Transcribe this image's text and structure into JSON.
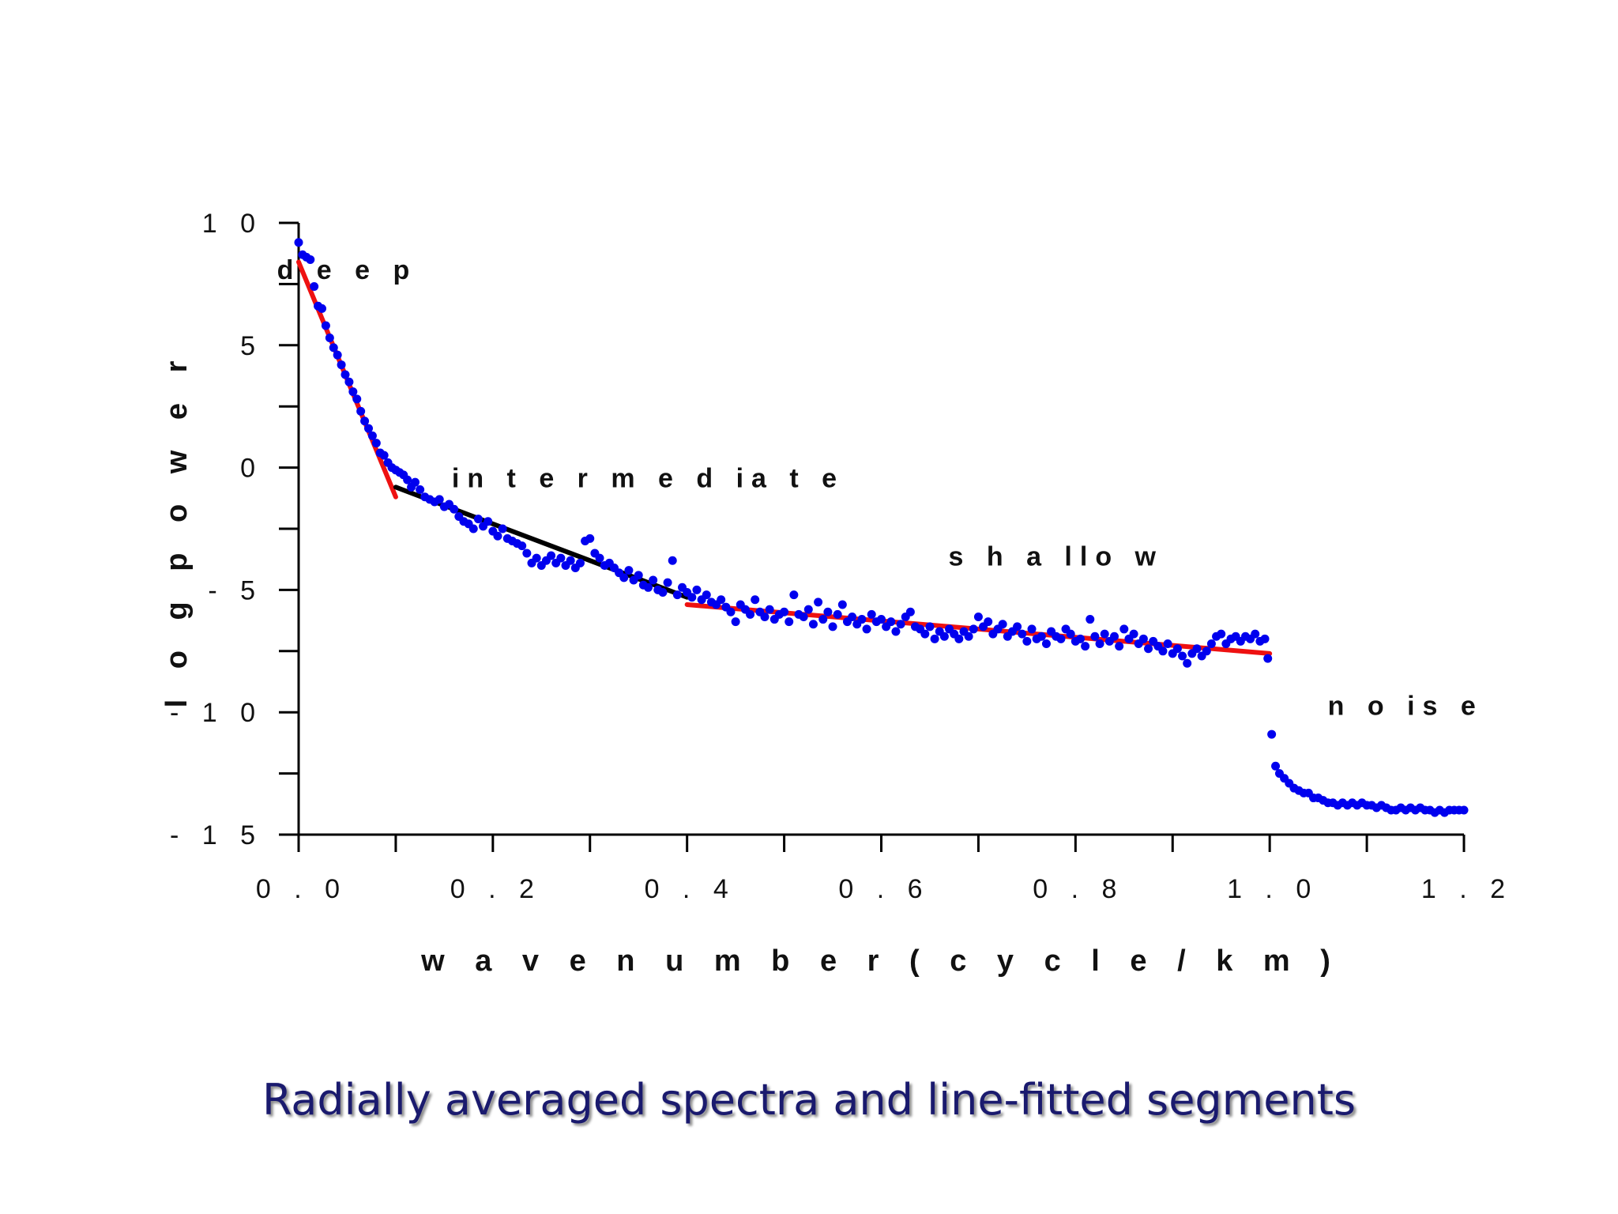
{
  "caption": "Radially averaged spectra and line-fitted segments",
  "chart_data": {
    "type": "scatter",
    "title": "",
    "xlabel": "w a v e n u m b e r ( c y c l e / k m )",
    "ylabel": "l o g   p o w e r",
    "xlim": [
      0,
      1.2
    ],
    "ylim": [
      -15,
      10
    ],
    "x_ticks": [
      0,
      0.1,
      0.2,
      0.3,
      0.4,
      0.5,
      0.6,
      0.7,
      0.8,
      0.9,
      1.0,
      1.1,
      1.2
    ],
    "x_tick_labels": [
      "0 . 0",
      "",
      "0 . 2",
      "",
      "0 . 4",
      "",
      "0 . 6",
      "",
      "0 . 8",
      "",
      "1 . 0",
      "",
      "1 . 2"
    ],
    "y_ticks": [
      10,
      7.5,
      5,
      2.5,
      0,
      -2.5,
      -5,
      -7.5,
      -10,
      -12.5,
      -15
    ],
    "y_tick_labels": [
      "1 0",
      "",
      "5",
      "",
      "0",
      "",
      "- 5",
      "",
      "- 1 0",
      "",
      "- 1 5"
    ],
    "grid": false,
    "colors": {
      "points": "#0000ee",
      "fit_deep": "#ee1111",
      "fit_intermediate": "#000000",
      "fit_shallow": "#ee1111",
      "caption": "#1a1a6e"
    },
    "points": [
      [
        0.0,
        9.2
      ],
      [
        0.004,
        8.7
      ],
      [
        0.008,
        8.6
      ],
      [
        0.012,
        8.5
      ],
      [
        0.016,
        7.4
      ],
      [
        0.02,
        6.6
      ],
      [
        0.024,
        6.5
      ],
      [
        0.028,
        5.8
      ],
      [
        0.032,
        5.3
      ],
      [
        0.036,
        4.9
      ],
      [
        0.04,
        4.6
      ],
      [
        0.044,
        4.2
      ],
      [
        0.048,
        3.8
      ],
      [
        0.052,
        3.5
      ],
      [
        0.056,
        3.1
      ],
      [
        0.06,
        2.8
      ],
      [
        0.064,
        2.3
      ],
      [
        0.068,
        1.9
      ],
      [
        0.072,
        1.6
      ],
      [
        0.076,
        1.3
      ],
      [
        0.08,
        1.0
      ],
      [
        0.084,
        0.6
      ],
      [
        0.088,
        0.5
      ],
      [
        0.092,
        0.2
      ],
      [
        0.096,
        0.0
      ],
      [
        0.1,
        -0.1
      ],
      [
        0.104,
        -0.2
      ],
      [
        0.108,
        -0.3
      ],
      [
        0.112,
        -0.5
      ],
      [
        0.116,
        -0.8
      ],
      [
        0.12,
        -0.6
      ],
      [
        0.125,
        -0.9
      ],
      [
        0.13,
        -1.2
      ],
      [
        0.135,
        -1.3
      ],
      [
        0.14,
        -1.4
      ],
      [
        0.145,
        -1.3
      ],
      [
        0.15,
        -1.6
      ],
      [
        0.155,
        -1.5
      ],
      [
        0.16,
        -1.7
      ],
      [
        0.165,
        -2.0
      ],
      [
        0.17,
        -2.2
      ],
      [
        0.175,
        -2.3
      ],
      [
        0.18,
        -2.5
      ],
      [
        0.185,
        -2.1
      ],
      [
        0.19,
        -2.4
      ],
      [
        0.195,
        -2.2
      ],
      [
        0.2,
        -2.6
      ],
      [
        0.205,
        -2.8
      ],
      [
        0.21,
        -2.5
      ],
      [
        0.215,
        -2.9
      ],
      [
        0.22,
        -3.0
      ],
      [
        0.225,
        -3.1
      ],
      [
        0.23,
        -3.2
      ],
      [
        0.235,
        -3.5
      ],
      [
        0.24,
        -3.9
      ],
      [
        0.245,
        -3.7
      ],
      [
        0.25,
        -4.0
      ],
      [
        0.255,
        -3.8
      ],
      [
        0.26,
        -3.6
      ],
      [
        0.265,
        -3.9
      ],
      [
        0.27,
        -3.7
      ],
      [
        0.275,
        -4.0
      ],
      [
        0.28,
        -3.8
      ],
      [
        0.285,
        -4.1
      ],
      [
        0.29,
        -3.9
      ],
      [
        0.295,
        -3.0
      ],
      [
        0.3,
        -2.9
      ],
      [
        0.305,
        -3.5
      ],
      [
        0.31,
        -3.7
      ],
      [
        0.315,
        -4.0
      ],
      [
        0.32,
        -3.9
      ],
      [
        0.325,
        -4.1
      ],
      [
        0.33,
        -4.3
      ],
      [
        0.335,
        -4.5
      ],
      [
        0.34,
        -4.2
      ],
      [
        0.345,
        -4.6
      ],
      [
        0.35,
        -4.4
      ],
      [
        0.355,
        -4.8
      ],
      [
        0.36,
        -4.9
      ],
      [
        0.365,
        -4.6
      ],
      [
        0.37,
        -5.0
      ],
      [
        0.375,
        -5.1
      ],
      [
        0.38,
        -4.7
      ],
      [
        0.385,
        -3.8
      ],
      [
        0.39,
        -5.2
      ],
      [
        0.395,
        -4.9
      ],
      [
        0.4,
        -5.1
      ],
      [
        0.405,
        -5.3
      ],
      [
        0.41,
        -5.0
      ],
      [
        0.415,
        -5.4
      ],
      [
        0.42,
        -5.2
      ],
      [
        0.425,
        -5.5
      ],
      [
        0.43,
        -5.6
      ],
      [
        0.435,
        -5.4
      ],
      [
        0.44,
        -5.7
      ],
      [
        0.445,
        -5.9
      ],
      [
        0.45,
        -6.3
      ],
      [
        0.455,
        -5.6
      ],
      [
        0.46,
        -5.8
      ],
      [
        0.465,
        -6.0
      ],
      [
        0.47,
        -5.4
      ],
      [
        0.475,
        -5.9
      ],
      [
        0.48,
        -6.1
      ],
      [
        0.485,
        -5.8
      ],
      [
        0.49,
        -6.2
      ],
      [
        0.495,
        -6.0
      ],
      [
        0.5,
        -5.9
      ],
      [
        0.505,
        -6.3
      ],
      [
        0.51,
        -5.2
      ],
      [
        0.515,
        -6.0
      ],
      [
        0.52,
        -6.1
      ],
      [
        0.525,
        -5.8
      ],
      [
        0.53,
        -6.4
      ],
      [
        0.535,
        -5.5
      ],
      [
        0.54,
        -6.2
      ],
      [
        0.545,
        -5.9
      ],
      [
        0.55,
        -6.5
      ],
      [
        0.555,
        -6.0
      ],
      [
        0.56,
        -5.6
      ],
      [
        0.565,
        -6.3
      ],
      [
        0.57,
        -6.1
      ],
      [
        0.575,
        -6.4
      ],
      [
        0.58,
        -6.2
      ],
      [
        0.585,
        -6.6
      ],
      [
        0.59,
        -6.0
      ],
      [
        0.595,
        -6.3
      ],
      [
        0.6,
        -6.2
      ],
      [
        0.605,
        -6.5
      ],
      [
        0.61,
        -6.3
      ],
      [
        0.615,
        -6.7
      ],
      [
        0.62,
        -6.4
      ],
      [
        0.625,
        -6.1
      ],
      [
        0.63,
        -5.9
      ],
      [
        0.635,
        -6.5
      ],
      [
        0.64,
        -6.6
      ],
      [
        0.645,
        -6.8
      ],
      [
        0.65,
        -6.5
      ],
      [
        0.655,
        -7.0
      ],
      [
        0.66,
        -6.7
      ],
      [
        0.665,
        -6.9
      ],
      [
        0.67,
        -6.6
      ],
      [
        0.675,
        -6.8
      ],
      [
        0.68,
        -7.0
      ],
      [
        0.685,
        -6.7
      ],
      [
        0.69,
        -6.9
      ],
      [
        0.695,
        -6.6
      ],
      [
        0.7,
        -6.1
      ],
      [
        0.705,
        -6.5
      ],
      [
        0.71,
        -6.3
      ],
      [
        0.715,
        -6.8
      ],
      [
        0.72,
        -6.6
      ],
      [
        0.725,
        -6.4
      ],
      [
        0.73,
        -6.9
      ],
      [
        0.735,
        -6.7
      ],
      [
        0.74,
        -6.5
      ],
      [
        0.745,
        -6.8
      ],
      [
        0.75,
        -7.1
      ],
      [
        0.755,
        -6.6
      ],
      [
        0.76,
        -7.0
      ],
      [
        0.765,
        -6.9
      ],
      [
        0.77,
        -7.2
      ],
      [
        0.775,
        -6.7
      ],
      [
        0.78,
        -6.9
      ],
      [
        0.785,
        -7.0
      ],
      [
        0.79,
        -6.6
      ],
      [
        0.795,
        -6.8
      ],
      [
        0.8,
        -7.1
      ],
      [
        0.805,
        -7.0
      ],
      [
        0.81,
        -7.3
      ],
      [
        0.815,
        -6.2
      ],
      [
        0.82,
        -6.9
      ],
      [
        0.825,
        -7.2
      ],
      [
        0.83,
        -6.8
      ],
      [
        0.835,
        -7.1
      ],
      [
        0.84,
        -6.9
      ],
      [
        0.845,
        -7.3
      ],
      [
        0.85,
        -6.6
      ],
      [
        0.855,
        -7.0
      ],
      [
        0.86,
        -6.8
      ],
      [
        0.865,
        -7.2
      ],
      [
        0.87,
        -7.0
      ],
      [
        0.875,
        -7.4
      ],
      [
        0.88,
        -7.1
      ],
      [
        0.885,
        -7.3
      ],
      [
        0.89,
        -7.5
      ],
      [
        0.895,
        -7.2
      ],
      [
        0.9,
        -7.6
      ],
      [
        0.905,
        -7.4
      ],
      [
        0.91,
        -7.7
      ],
      [
        0.915,
        -8.0
      ],
      [
        0.92,
        -7.6
      ],
      [
        0.925,
        -7.4
      ],
      [
        0.93,
        -7.7
      ],
      [
        0.935,
        -7.5
      ],
      [
        0.94,
        -7.2
      ],
      [
        0.945,
        -6.9
      ],
      [
        0.95,
        -6.8
      ],
      [
        0.955,
        -7.2
      ],
      [
        0.96,
        -7.0
      ],
      [
        0.965,
        -6.9
      ],
      [
        0.97,
        -7.1
      ],
      [
        0.975,
        -6.9
      ],
      [
        0.98,
        -7.0
      ],
      [
        0.985,
        -6.8
      ],
      [
        0.99,
        -7.1
      ],
      [
        0.995,
        -7.0
      ],
      [
        0.998,
        -7.8
      ],
      [
        1.002,
        -10.9
      ],
      [
        1.006,
        -12.2
      ],
      [
        1.01,
        -12.5
      ],
      [
        1.015,
        -12.7
      ],
      [
        1.02,
        -12.9
      ],
      [
        1.025,
        -13.1
      ],
      [
        1.03,
        -13.2
      ],
      [
        1.035,
        -13.3
      ],
      [
        1.04,
        -13.3
      ],
      [
        1.045,
        -13.5
      ],
      [
        1.05,
        -13.5
      ],
      [
        1.055,
        -13.6
      ],
      [
        1.06,
        -13.7
      ],
      [
        1.065,
        -13.7
      ],
      [
        1.07,
        -13.8
      ],
      [
        1.075,
        -13.7
      ],
      [
        1.08,
        -13.8
      ],
      [
        1.085,
        -13.7
      ],
      [
        1.09,
        -13.8
      ],
      [
        1.095,
        -13.7
      ],
      [
        1.1,
        -13.8
      ],
      [
        1.105,
        -13.8
      ],
      [
        1.11,
        -13.9
      ],
      [
        1.115,
        -13.8
      ],
      [
        1.12,
        -13.9
      ],
      [
        1.125,
        -14.0
      ],
      [
        1.13,
        -14.0
      ],
      [
        1.135,
        -13.9
      ],
      [
        1.14,
        -14.0
      ],
      [
        1.145,
        -13.9
      ],
      [
        1.15,
        -14.0
      ],
      [
        1.155,
        -13.9
      ],
      [
        1.16,
        -14.0
      ],
      [
        1.165,
        -14.0
      ],
      [
        1.17,
        -14.1
      ],
      [
        1.175,
        -14.0
      ],
      [
        1.18,
        -14.1
      ],
      [
        1.185,
        -14.0
      ],
      [
        1.19,
        -14.0
      ],
      [
        1.195,
        -14.0
      ],
      [
        1.2,
        -14.0
      ]
    ],
    "fit_segments": [
      {
        "label": "deep",
        "x": [
          0.0,
          0.1
        ],
        "y": [
          8.4,
          -1.2
        ]
      },
      {
        "label": "intermediate",
        "x": [
          0.1,
          0.4
        ],
        "y": [
          -0.8,
          -5.3
        ]
      },
      {
        "label": "shallow",
        "x": [
          0.4,
          1.0
        ],
        "y": [
          -5.6,
          -7.6
        ]
      }
    ],
    "annotations": [
      {
        "text": "d e e p",
        "x": 0.05,
        "y": 7.7
      },
      {
        "text": "in t e r m  e d ia t e",
        "x": 0.36,
        "y": -0.8
      },
      {
        "text": "s h a llo w",
        "x": 0.78,
        "y": -4.0
      },
      {
        "text": "n o is e",
        "x": 1.14,
        "y": -10.1
      }
    ]
  }
}
